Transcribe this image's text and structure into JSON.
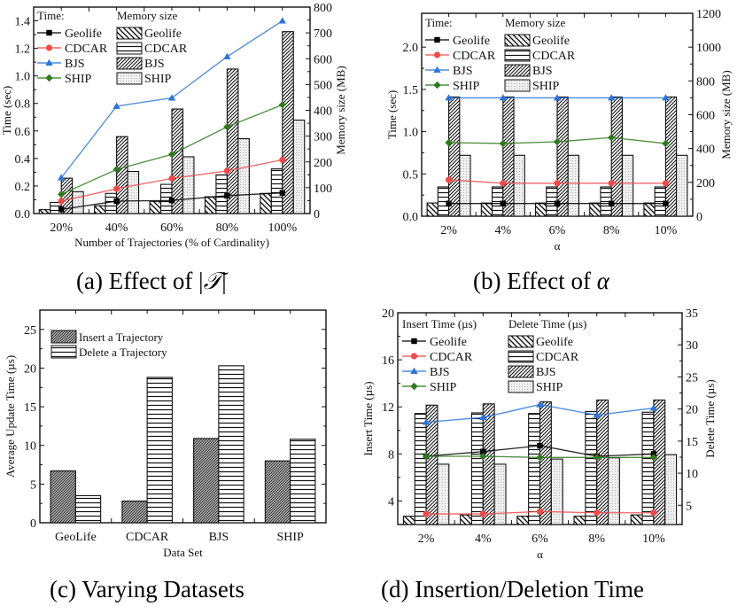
{
  "captions": {
    "a": {
      "prefix": "(a) Effect of |",
      "math": "𝒯",
      "suffix": "|"
    },
    "b": {
      "prefix": "(b) Effect of ",
      "math": "α",
      "suffix": ""
    },
    "c": {
      "prefix": "(c) Varying Datasets",
      "math": "",
      "suffix": ""
    },
    "d": {
      "prefix": "(d) Insertion/Deletion Time",
      "math": "",
      "suffix": ""
    }
  },
  "colors": {
    "Geolife": "#000000",
    "CDCAR": "#ef4a4a",
    "BJS": "#2c74d8",
    "SHIP": "#2f7a1f"
  },
  "chart_data": [
    {
      "id": "a",
      "type": "bar",
      "combo": "bar+line",
      "xlabel": "Number of Trajectories (% of Cardinality)",
      "ylabel": "Time (sec)",
      "y2label": "Memory size (MB)",
      "categories": [
        "20%",
        "40%",
        "60%",
        "80%",
        "100%"
      ],
      "ylim": [
        0,
        1.5
      ],
      "yticks": [
        0.0,
        0.2,
        0.4,
        0.6,
        0.8,
        1.0,
        1.2,
        1.4
      ],
      "ytick_labels": [
        "0.0",
        "0.2",
        "0.4",
        "0.6",
        "0.8",
        "1.0",
        "1.2",
        "1.4"
      ],
      "y2lim": [
        0,
        800
      ],
      "y2ticks": [
        0,
        100,
        200,
        300,
        400,
        500,
        600,
        700,
        800
      ],
      "legend_line_title": "Time:",
      "legend_bar_title": "Memory size",
      "legend_position": "top-left",
      "bar_series": [
        {
          "name": "Geolife",
          "pattern": "backslash",
          "values": [
            15,
            30,
            47,
            65,
            78
          ]
        },
        {
          "name": "CDCAR",
          "pattern": "horizontal",
          "values": [
            43,
            78,
            113,
            150,
            173
          ]
        },
        {
          "name": "BJS",
          "pattern": "slash",
          "values": [
            137,
            298,
            405,
            560,
            705
          ]
        },
        {
          "name": "SHIP",
          "pattern": "dots",
          "values": [
            85,
            163,
            220,
            290,
            362
          ]
        }
      ],
      "line_series": [
        {
          "name": "Geolife",
          "marker": "square",
          "values": [
            0.03,
            0.09,
            0.095,
            0.13,
            0.15
          ]
        },
        {
          "name": "CDCAR",
          "marker": "circle",
          "values": [
            0.09,
            0.18,
            0.255,
            0.31,
            0.39
          ]
        },
        {
          "name": "BJS",
          "marker": "triangle",
          "values": [
            0.26,
            0.78,
            0.84,
            1.14,
            1.4
          ]
        },
        {
          "name": "SHIP",
          "marker": "diamond",
          "values": [
            0.14,
            0.32,
            0.43,
            0.63,
            0.79
          ]
        }
      ]
    },
    {
      "id": "b",
      "type": "bar",
      "combo": "bar+line",
      "xlabel": "α",
      "ylabel": "Time (sec)",
      "y2label": "Memory size (MB)",
      "categories": [
        "2%",
        "4%",
        "6%",
        "8%",
        "10%"
      ],
      "ylim": [
        0,
        2.4
      ],
      "yticks": [
        0.0,
        0.5,
        1.0,
        1.5,
        2.0
      ],
      "ytick_labels": [
        "0.0",
        "0.5",
        "1.0",
        "1.5",
        "2.0"
      ],
      "y2lim": [
        0,
        1200
      ],
      "y2ticks": [
        0,
        200,
        400,
        600,
        800,
        1000,
        1200
      ],
      "legend_line_title": "Time:",
      "legend_bar_title": "Memory size",
      "legend_position": "top-left",
      "bar_series": [
        {
          "name": "Geolife",
          "pattern": "backslash",
          "values": [
            78,
            78,
            78,
            78,
            78
          ]
        },
        {
          "name": "CDCAR",
          "pattern": "horizontal",
          "values": [
            173,
            173,
            173,
            173,
            173
          ]
        },
        {
          "name": "BJS",
          "pattern": "slash",
          "values": [
            705,
            705,
            705,
            705,
            705
          ]
        },
        {
          "name": "SHIP",
          "pattern": "dots",
          "values": [
            360,
            360,
            360,
            360,
            360
          ]
        }
      ],
      "line_series": [
        {
          "name": "Geolife",
          "marker": "square",
          "values": [
            0.15,
            0.15,
            0.15,
            0.15,
            0.15
          ]
        },
        {
          "name": "CDCAR",
          "marker": "circle",
          "values": [
            0.43,
            0.39,
            0.39,
            0.39,
            0.39
          ]
        },
        {
          "name": "BJS",
          "marker": "triangle",
          "values": [
            1.4,
            1.4,
            1.4,
            1.4,
            1.4
          ]
        },
        {
          "name": "SHIP",
          "marker": "diamond",
          "values": [
            0.87,
            0.86,
            0.88,
            0.93,
            0.86
          ]
        }
      ]
    },
    {
      "id": "c",
      "type": "bar",
      "xlabel": "Data Set",
      "ylabel": "Average Update Time (µs)",
      "categories": [
        "GeoLife",
        "CDCAR",
        "BJS",
        "SHIP"
      ],
      "ylim": [
        0,
        27.5
      ],
      "yticks": [
        0,
        5,
        10,
        15,
        20,
        25
      ],
      "ytick_labels": [
        "0",
        "5",
        "10",
        "15",
        "20",
        "25"
      ],
      "legend_position": "top-left",
      "series": [
        {
          "name": "Insert a Trajectory",
          "pattern": "dense-slash",
          "values": [
            6.7,
            2.8,
            10.9,
            8.0
          ]
        },
        {
          "name": "Delete a Trajectory",
          "pattern": "horizontal",
          "values": [
            3.5,
            18.8,
            20.3,
            10.8
          ]
        }
      ]
    },
    {
      "id": "d",
      "type": "bar",
      "combo": "bar+line",
      "xlabel": "α",
      "ylabel": "Insert Time (µs)",
      "y2label": "Delete Time (µs)",
      "categories": [
        "2%",
        "4%",
        "6%",
        "8%",
        "10%"
      ],
      "ylim": [
        2,
        20
      ],
      "yticks": [
        4,
        8,
        12,
        16,
        20
      ],
      "ytick_labels": [
        "4",
        "8",
        "12",
        "16",
        "20"
      ],
      "y2lim": [
        2,
        35
      ],
      "y2ticks": [
        5,
        10,
        15,
        20,
        25,
        30,
        35
      ],
      "legend_line_title": "Insert Time (µs)",
      "legend_bar_title": "Delete Time (µs)",
      "legend_position": "top-left",
      "bar_series": [
        {
          "name": "Geolife",
          "pattern": "backslash",
          "values": [
            3.3,
            3.5,
            3.3,
            3.3,
            3.5
          ]
        },
        {
          "name": "CDCAR",
          "pattern": "horizontal",
          "values": [
            19.3,
            19.4,
            19.3,
            19.6,
            19.5
          ]
        },
        {
          "name": "BJS",
          "pattern": "slash",
          "values": [
            20.6,
            20.8,
            21.1,
            21.4,
            21.4
          ]
        },
        {
          "name": "SHIP",
          "pattern": "dots",
          "values": [
            11.4,
            11.4,
            12.2,
            12.4,
            12.9
          ]
        }
      ],
      "line_series": [
        {
          "name": "Geolife",
          "marker": "square",
          "values": [
            7.8,
            8.2,
            8.7,
            7.8,
            8.0
          ]
        },
        {
          "name": "CDCAR",
          "marker": "circle",
          "values": [
            2.9,
            2.9,
            3.1,
            3.0,
            3.0
          ]
        },
        {
          "name": "BJS",
          "marker": "triangle",
          "values": [
            10.7,
            11.1,
            12.2,
            11.3,
            11.9
          ]
        },
        {
          "name": "SHIP",
          "marker": "diamond",
          "values": [
            7.8,
            7.8,
            7.7,
            7.7,
            7.7
          ]
        }
      ]
    }
  ]
}
